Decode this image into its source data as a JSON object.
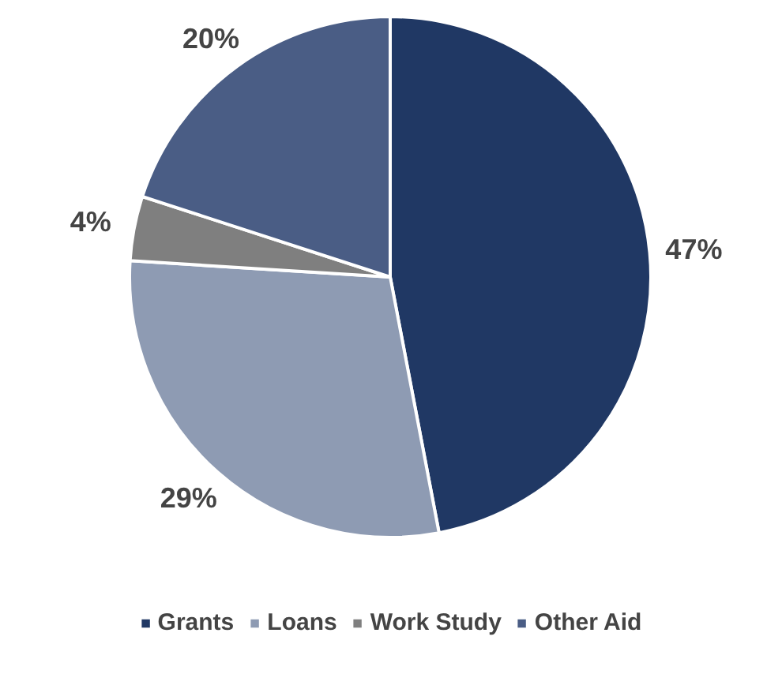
{
  "chart_data": {
    "type": "pie",
    "categories": [
      "Grants",
      "Loans",
      "Work Study",
      "Other Aid"
    ],
    "values": [
      47,
      29,
      4,
      20
    ],
    "value_labels": [
      "47%",
      "29%",
      "4%",
      "20%"
    ],
    "colors": [
      "#203864",
      "#8e9bb3",
      "#7f7f7f",
      "#4a5d85"
    ],
    "legend": "bottom"
  }
}
